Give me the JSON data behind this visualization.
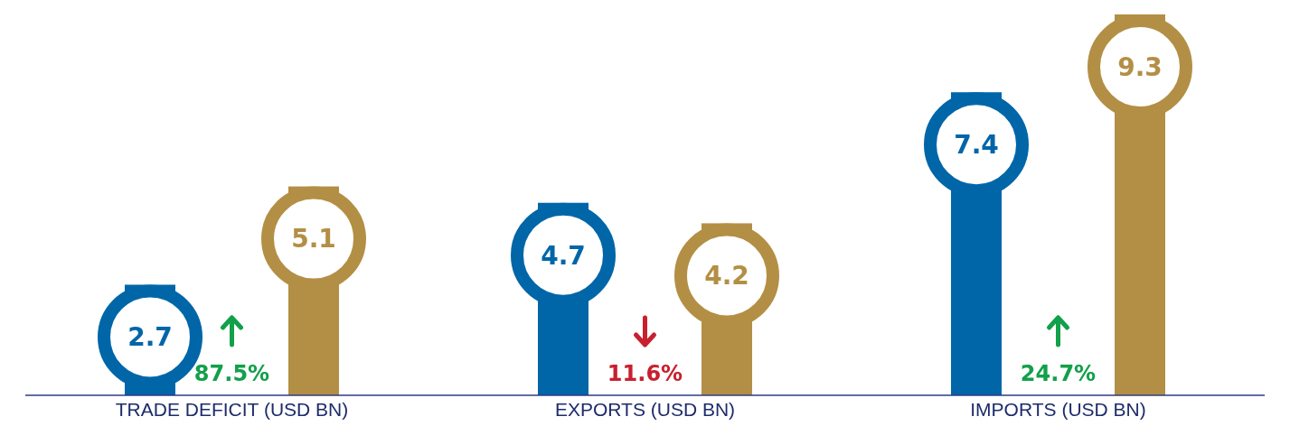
{
  "chart_data": {
    "type": "bar",
    "categories": [
      "TRADE DEFICIT (USD BN)",
      "EXPORTS (USD BN)",
      "IMPORTS (USD BN)"
    ],
    "series": [
      {
        "color": "#0066a8",
        "values": [
          2.7,
          4.7,
          7.4
        ]
      },
      {
        "color": "#b38f45",
        "values": [
          5.1,
          4.2,
          9.3
        ]
      }
    ],
    "data_labels": true,
    "legend": false,
    "annotations": [
      "87.5%",
      "11.6%",
      "24.7%"
    ]
  }
}
